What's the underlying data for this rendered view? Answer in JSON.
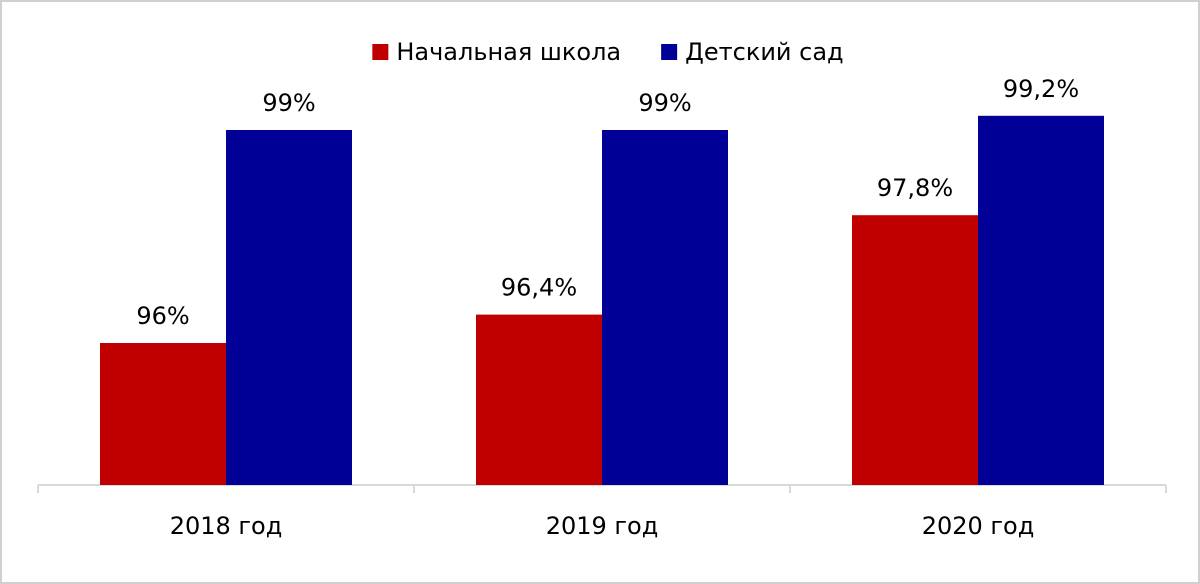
{
  "chart_data": {
    "type": "bar",
    "categories": [
      "2018 год",
      "2019 год",
      "2020 год"
    ],
    "series": [
      {
        "name": "Начальная школа",
        "color": "#c00000",
        "values": [
          96,
          96.4,
          97.8
        ],
        "value_labels": [
          "96%",
          "96,4%",
          "97,8%"
        ]
      },
      {
        "name": "Детский сад",
        "color": "#000096",
        "values": [
          99,
          99,
          99.2
        ],
        "value_labels": [
          "99%",
          "99%",
          "99,2%"
        ]
      }
    ],
    "ylim": [
      94,
      100
    ],
    "legend": "top"
  }
}
